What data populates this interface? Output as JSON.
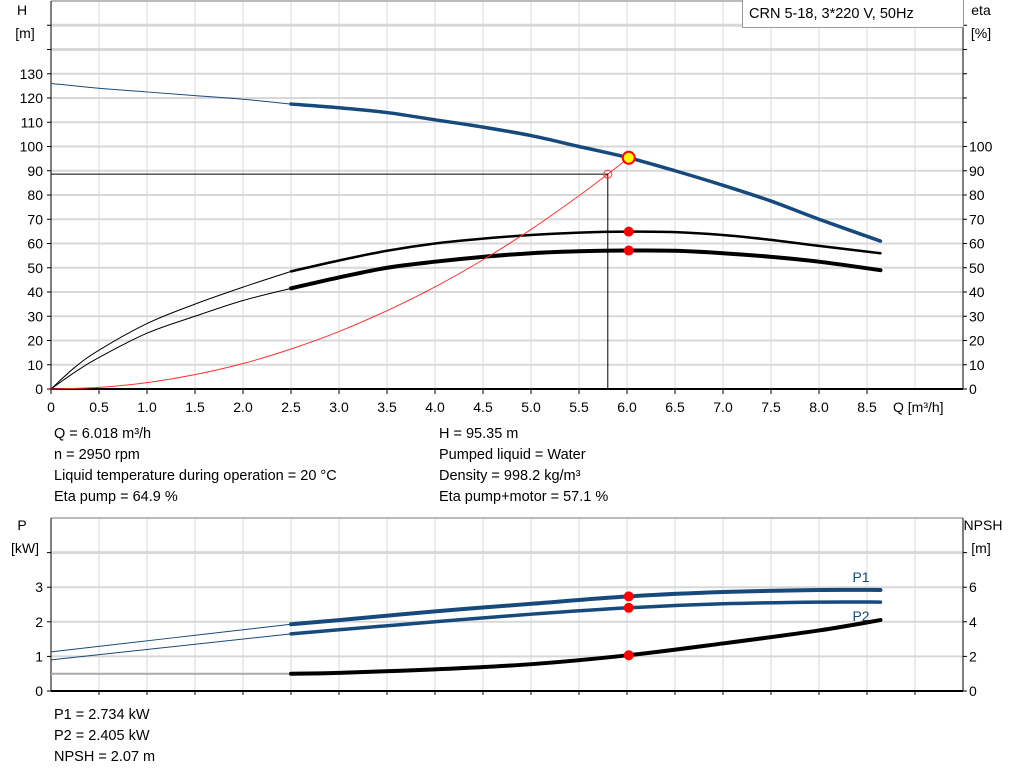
{
  "chart_data": [
    {
      "type": "line",
      "title": "CRN 5-18, 3*220 V, 50Hz",
      "xlabel": "Q [m³/h]",
      "ylabel_left": [
        "H",
        "[m]"
      ],
      "ylabel_right": [
        "eta",
        "[%]"
      ],
      "xlim": [
        0,
        9.5
      ],
      "ylim_left": [
        0,
        160
      ],
      "ylim_right": [
        0,
        160
      ],
      "grid": true,
      "x_ticks": [
        "0",
        "0.5",
        "1.0",
        "1.5",
        "2.0",
        "2.5",
        "3.0",
        "3.5",
        "4.0",
        "4.5",
        "5.0",
        "5.5",
        "6.0",
        "6.5",
        "7.0",
        "7.5",
        "8.0",
        "8.5"
      ],
      "y_ticks_left": [
        "0",
        "10",
        "20",
        "30",
        "40",
        "50",
        "60",
        "70",
        "80",
        "90",
        "100",
        "110",
        "120",
        "130"
      ],
      "y_ticks_right": [
        "0",
        "10",
        "20",
        "30",
        "40",
        "50",
        "60",
        "70",
        "80",
        "90",
        "100"
      ],
      "series": [
        {
          "id": "H",
          "axis": "left",
          "color": "#174a7c",
          "thin_until": 2.5,
          "x": [
            0,
            0.5,
            1,
            1.5,
            2,
            2.5,
            3,
            3.5,
            4,
            4.5,
            5,
            5.5,
            6.018,
            6.5,
            7,
            7.5,
            8,
            8.64
          ],
          "y": [
            126,
            124,
            122.5,
            121,
            119.5,
            117.5,
            116,
            114,
            111,
            108,
            104.5,
            100,
            95.35,
            90,
            84,
            77.5,
            70,
            61
          ]
        },
        {
          "id": "eta-pump",
          "axis": "right",
          "color": "#000000",
          "thin_until": 2.5,
          "x": [
            0,
            0.25,
            0.5,
            1,
            1.5,
            2,
            2.5,
            3,
            3.5,
            4,
            4.5,
            5,
            5.5,
            6,
            6.5,
            7,
            7.5,
            8,
            8.64
          ],
          "y": [
            0,
            9,
            16,
            27,
            35,
            42,
            48.5,
            53,
            57,
            60,
            62,
            63.5,
            64.5,
            64.9,
            64.7,
            63.5,
            61.5,
            59,
            56
          ]
        },
        {
          "id": "eta-pump-motor",
          "axis": "right",
          "color": "#000000",
          "thin_until": 2.5,
          "bold": true,
          "x": [
            0,
            0.25,
            0.5,
            1,
            1.5,
            2,
            2.5,
            3,
            3.5,
            4,
            4.5,
            5,
            5.5,
            6,
            6.5,
            7,
            7.5,
            8,
            8.64
          ],
          "y": [
            0,
            7,
            13,
            23,
            30,
            36.5,
            41.5,
            46,
            50,
            52.5,
            54.5,
            56,
            56.8,
            57.1,
            57,
            56,
            54.5,
            52.5,
            49
          ]
        },
        {
          "id": "system-curve",
          "axis": "left",
          "color": "#ff3030",
          "x": [
            0,
            0.5,
            1,
            1.5,
            2,
            2.5,
            3,
            3.5,
            4,
            4.5,
            5,
            5.5,
            5.8,
            6.018
          ],
          "y": [
            0,
            0.66,
            2.63,
            5.92,
            10.5,
            16.5,
            23.7,
            32.3,
            42.1,
            53.3,
            65.8,
            79.7,
            88.6,
            95.35
          ]
        }
      ],
      "operating_point": {
        "Q": 6.018,
        "H": 95.35,
        "eta_pump": 64.9,
        "eta_pump_motor": 57.1,
        "color": "#ffff00"
      },
      "reference_point": {
        "Q": 5.8,
        "H": 88.6
      }
    },
    {
      "type": "line",
      "xlim": [
        0,
        9.5
      ],
      "ylabel_left": [
        "P",
        "[kW]"
      ],
      "ylabel_right": [
        "NPSH",
        "[m]"
      ],
      "ylim_left": [
        0,
        5
      ],
      "ylim_right": [
        0,
        10
      ],
      "grid": true,
      "y_ticks_left": [
        "0",
        "1",
        "2",
        "3"
      ],
      "y_ticks_right": [
        "0",
        "2",
        "4",
        "6"
      ],
      "series": [
        {
          "id": "P1",
          "name": "P1",
          "axis": "left",
          "color": "#174a7c",
          "thin_until": 2.5,
          "bold": true,
          "x": [
            0,
            2.5,
            3,
            4,
            5,
            6.018,
            7,
            8,
            8.64
          ],
          "y": [
            1.13,
            1.93,
            2.05,
            2.3,
            2.52,
            2.734,
            2.86,
            2.92,
            2.92
          ]
        },
        {
          "id": "P2",
          "name": "P2",
          "axis": "left",
          "color": "#174a7c",
          "thin_until": 2.5,
          "x": [
            0,
            2.5,
            3,
            4,
            5,
            6.018,
            7,
            8,
            8.64
          ],
          "y": [
            0.9,
            1.65,
            1.77,
            2.0,
            2.22,
            2.405,
            2.52,
            2.57,
            2.57
          ]
        },
        {
          "id": "NPSH",
          "axis": "right",
          "color": "#000000",
          "thin_until": 2.5,
          "bold": true,
          "thin_color": "#aaaaaa",
          "x": [
            0,
            2.5,
            3,
            4,
            5,
            6.018,
            7,
            8,
            8.64
          ],
          "y": [
            1.0,
            1.0,
            1.05,
            1.25,
            1.55,
            2.07,
            2.75,
            3.5,
            4.1
          ]
        }
      ],
      "operating_point": {
        "Q": 6.018,
        "P1": 2.734,
        "P2": 2.405,
        "NPSH": 2.07
      }
    }
  ],
  "info_left": [
    "Q = 6.018 m³/h",
    "n = 2950 rpm",
    "Liquid temperature during operation = 20 °C",
    "Eta pump = 64.9 %"
  ],
  "info_right": [
    "H = 95.35 m",
    "Pumped liquid = Water",
    "Density = 998.2 kg/m³",
    "Eta pump+motor = 57.1 %"
  ],
  "info_bottom": [
    "P1 = 2.734 kW",
    "P2 = 2.405 kW",
    "NPSH = 2.07 m"
  ]
}
